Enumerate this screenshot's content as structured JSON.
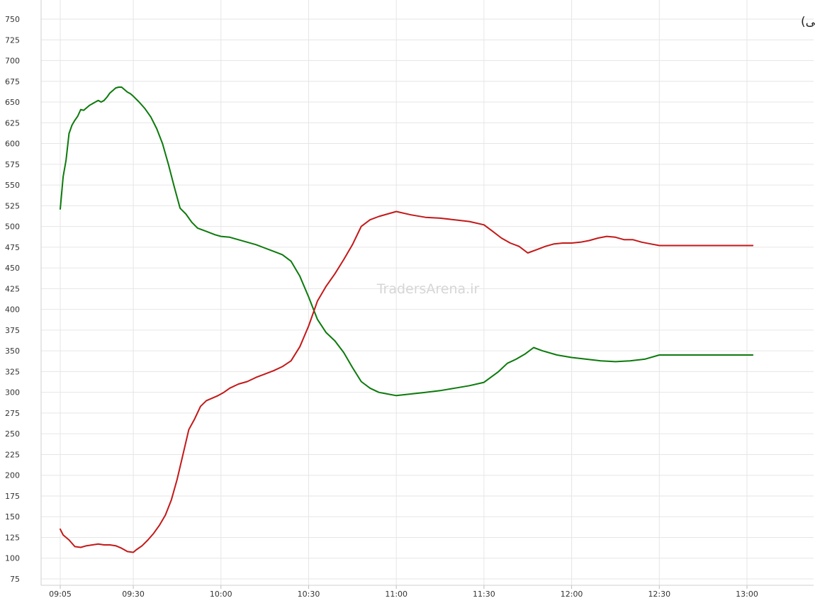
{
  "chart_data": {
    "type": "line",
    "title": "نمادهای مثبت و منفی (سهام حق تقدم و صندوق های سهامی)",
    "watermark": "TradersArena.ir",
    "grid": true,
    "ylim": [
      75,
      750
    ],
    "xlim": [
      "09:00",
      "13:15"
    ],
    "y_ticks": [
      75,
      100,
      125,
      150,
      175,
      200,
      225,
      250,
      275,
      300,
      325,
      350,
      375,
      400,
      425,
      450,
      475,
      500,
      525,
      550,
      575,
      600,
      625,
      650,
      675,
      700,
      725,
      750
    ],
    "x_ticks": [
      "09:05",
      "09:30",
      "10:00",
      "10:30",
      "11:00",
      "11:30",
      "12:00",
      "12:30",
      "13:00"
    ],
    "series": [
      {
        "color": "#0b7a0b",
        "points": [
          [
            "09:05",
            521
          ],
          [
            "09:06",
            560
          ],
          [
            "09:07",
            580
          ],
          [
            "09:08",
            612
          ],
          [
            "09:09",
            622
          ],
          [
            "09:10",
            628
          ],
          [
            "09:11",
            633
          ],
          [
            "09:12",
            641
          ],
          [
            "09:13",
            640
          ],
          [
            "09:14",
            643
          ],
          [
            "09:15",
            646
          ],
          [
            "09:16",
            648
          ],
          [
            "09:17",
            650
          ],
          [
            "09:18",
            652
          ],
          [
            "09:19",
            650
          ],
          [
            "09:20",
            652
          ],
          [
            "09:21",
            656
          ],
          [
            "09:22",
            661
          ],
          [
            "09:23",
            664
          ],
          [
            "09:24",
            667
          ],
          [
            "09:25",
            668
          ],
          [
            "09:26",
            668
          ],
          [
            "09:27",
            665
          ],
          [
            "09:28",
            662
          ],
          [
            "09:29",
            660
          ],
          [
            "09:30",
            657
          ],
          [
            "09:32",
            650
          ],
          [
            "09:34",
            642
          ],
          [
            "09:36",
            632
          ],
          [
            "09:38",
            618
          ],
          [
            "09:40",
            600
          ],
          [
            "09:42",
            575
          ],
          [
            "09:44",
            548
          ],
          [
            "09:46",
            522
          ],
          [
            "09:48",
            515
          ],
          [
            "09:50",
            505
          ],
          [
            "09:52",
            498
          ],
          [
            "09:55",
            494
          ],
          [
            "09:58",
            490
          ],
          [
            "10:00",
            488
          ],
          [
            "10:03",
            487
          ],
          [
            "10:06",
            484
          ],
          [
            "10:09",
            481
          ],
          [
            "10:12",
            478
          ],
          [
            "10:15",
            474
          ],
          [
            "10:18",
            470
          ],
          [
            "10:21",
            466
          ],
          [
            "10:24",
            458
          ],
          [
            "10:27",
            440
          ],
          [
            "10:30",
            415
          ],
          [
            "10:33",
            388
          ],
          [
            "10:36",
            372
          ],
          [
            "10:39",
            362
          ],
          [
            "10:42",
            348
          ],
          [
            "10:45",
            330
          ],
          [
            "10:48",
            313
          ],
          [
            "10:51",
            305
          ],
          [
            "10:54",
            300
          ],
          [
            "10:57",
            298
          ],
          [
            "11:00",
            296
          ],
          [
            "11:05",
            298
          ],
          [
            "11:10",
            300
          ],
          [
            "11:15",
            302
          ],
          [
            "11:20",
            305
          ],
          [
            "11:25",
            308
          ],
          [
            "11:30",
            312
          ],
          [
            "11:35",
            325
          ],
          [
            "11:38",
            335
          ],
          [
            "11:41",
            340
          ],
          [
            "11:44",
            346
          ],
          [
            "11:47",
            354
          ],
          [
            "11:50",
            350
          ],
          [
            "11:55",
            345
          ],
          [
            "12:00",
            342
          ],
          [
            "12:05",
            340
          ],
          [
            "12:10",
            338
          ],
          [
            "12:15",
            337
          ],
          [
            "12:20",
            338
          ],
          [
            "12:25",
            340
          ],
          [
            "12:30",
            345
          ],
          [
            "13:00",
            345
          ],
          [
            "13:02",
            345
          ]
        ]
      },
      {
        "color": "#c41818",
        "points": [
          [
            "09:05",
            135
          ],
          [
            "09:06",
            128
          ],
          [
            "09:08",
            122
          ],
          [
            "09:10",
            114
          ],
          [
            "09:12",
            113
          ],
          [
            "09:14",
            115
          ],
          [
            "09:16",
            116
          ],
          [
            "09:18",
            117
          ],
          [
            "09:20",
            116
          ],
          [
            "09:22",
            116
          ],
          [
            "09:24",
            115
          ],
          [
            "09:26",
            112
          ],
          [
            "09:28",
            108
          ],
          [
            "09:30",
            107
          ],
          [
            "09:31",
            110
          ],
          [
            "09:33",
            115
          ],
          [
            "09:35",
            122
          ],
          [
            "09:37",
            130
          ],
          [
            "09:39",
            140
          ],
          [
            "09:41",
            152
          ],
          [
            "09:43",
            170
          ],
          [
            "09:45",
            195
          ],
          [
            "09:47",
            225
          ],
          [
            "09:49",
            255
          ],
          [
            "09:51",
            268
          ],
          [
            "09:53",
            283
          ],
          [
            "09:55",
            290
          ],
          [
            "09:57",
            293
          ],
          [
            "09:59",
            296
          ],
          [
            "10:01",
            300
          ],
          [
            "10:03",
            305
          ],
          [
            "10:06",
            310
          ],
          [
            "10:09",
            313
          ],
          [
            "10:12",
            318
          ],
          [
            "10:15",
            322
          ],
          [
            "10:18",
            326
          ],
          [
            "10:21",
            331
          ],
          [
            "10:24",
            338
          ],
          [
            "10:27",
            355
          ],
          [
            "10:30",
            380
          ],
          [
            "10:33",
            410
          ],
          [
            "10:36",
            428
          ],
          [
            "10:39",
            443
          ],
          [
            "10:42",
            460
          ],
          [
            "10:45",
            478
          ],
          [
            "10:48",
            500
          ],
          [
            "10:51",
            508
          ],
          [
            "10:54",
            512
          ],
          [
            "10:57",
            515
          ],
          [
            "11:00",
            518
          ],
          [
            "11:05",
            514
          ],
          [
            "11:10",
            511
          ],
          [
            "11:15",
            510
          ],
          [
            "11:20",
            508
          ],
          [
            "11:25",
            506
          ],
          [
            "11:30",
            502
          ],
          [
            "11:33",
            494
          ],
          [
            "11:36",
            486
          ],
          [
            "11:39",
            480
          ],
          [
            "11:42",
            476
          ],
          [
            "11:45",
            468
          ],
          [
            "11:48",
            472
          ],
          [
            "11:51",
            476
          ],
          [
            "11:54",
            479
          ],
          [
            "11:57",
            480
          ],
          [
            "12:00",
            480
          ],
          [
            "12:03",
            481
          ],
          [
            "12:06",
            483
          ],
          [
            "12:09",
            486
          ],
          [
            "12:12",
            488
          ],
          [
            "12:15",
            487
          ],
          [
            "12:18",
            484
          ],
          [
            "12:21",
            484
          ],
          [
            "12:24",
            481
          ],
          [
            "12:27",
            479
          ],
          [
            "12:30",
            477
          ],
          [
            "13:00",
            477
          ],
          [
            "13:02",
            477
          ]
        ]
      }
    ]
  }
}
